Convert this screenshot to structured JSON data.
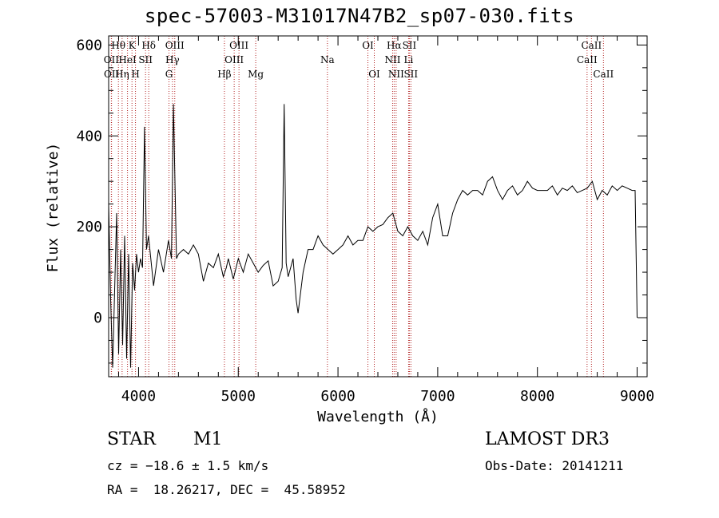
{
  "title": "spec-57003-M31017N47B2_sp07-030.fits",
  "info": {
    "class": "STAR",
    "subclass": "M1",
    "survey": "LAMOST DR3",
    "cz": "cz = −18.6 ± 1.5 km/s",
    "obs_date": "Obs-Date: 20141211",
    "coords": "RA =  18.26217, DEC =  45.58952"
  },
  "chart_data": {
    "type": "line",
    "xlabel": "Wavelength (Å)",
    "ylabel": "Flux (relative)",
    "xlim": [
      3700,
      9100
    ],
    "ylim": [
      -130,
      620
    ],
    "xticks": [
      4000,
      5000,
      6000,
      7000,
      8000,
      9000
    ],
    "yticks": [
      0,
      200,
      400,
      600
    ],
    "line_color": "#000000",
    "marker_color": "#b22222",
    "lines": [
      {
        "label": "Hθ",
        "wavelength": 3798,
        "row": 0
      },
      {
        "label": "OII",
        "wavelength": 3727,
        "row": 1
      },
      {
        "label": "OII",
        "wavelength": 3729,
        "row": 2
      },
      {
        "label": "Hη",
        "wavelength": 3835,
        "row": 2
      },
      {
        "label": "HeI",
        "wavelength": 3889,
        "row": 1
      },
      {
        "label": "K",
        "wavelength": 3934,
        "row": 0
      },
      {
        "label": "H",
        "wavelength": 3969,
        "row": 2
      },
      {
        "label": "SII",
        "wavelength": 4070,
        "row": 1
      },
      {
        "label": "Hδ",
        "wavelength": 4102,
        "row": 0
      },
      {
        "label": "G",
        "wavelength": 4305,
        "row": 2
      },
      {
        "label": "OIII",
        "wavelength": 4363,
        "row": 0
      },
      {
        "label": "Hγ",
        "wavelength": 4340,
        "row": 1
      },
      {
        "label": "Hβ",
        "wavelength": 4861,
        "row": 2
      },
      {
        "label": "OIII",
        "wavelength": 4959,
        "row": 1
      },
      {
        "label": "OIII",
        "wavelength": 5007,
        "row": 0
      },
      {
        "label": "Mg",
        "wavelength": 5175,
        "row": 2
      },
      {
        "label": "Na",
        "wavelength": 5894,
        "row": 1
      },
      {
        "label": "OI",
        "wavelength": 6300,
        "row": 0
      },
      {
        "label": "OI",
        "wavelength": 6364,
        "row": 2
      },
      {
        "label": "Hα",
        "wavelength": 6563,
        "row": 0
      },
      {
        "label": "NII",
        "wavelength": 6548,
        "row": 1
      },
      {
        "label": "NII",
        "wavelength": 6583,
        "row": 2
      },
      {
        "label": "SII",
        "wavelength": 6716,
        "row": 0
      },
      {
        "label": "Li",
        "wavelength": 6708,
        "row": 1
      },
      {
        "label": "SII",
        "wavelength": 6731,
        "row": 2
      },
      {
        "label": "CaII",
        "wavelength": 8542,
        "row": 0
      },
      {
        "label": "CaII",
        "wavelength": 8498,
        "row": 1
      },
      {
        "label": "CaII",
        "wavelength": 8662,
        "row": 2
      }
    ],
    "series": [
      {
        "x": [
          3700,
          3720,
          3740,
          3760,
          3780,
          3800,
          3820,
          3840,
          3860,
          3880,
          3900,
          3920,
          3940,
          3960,
          3980,
          4000,
          4020,
          4040,
          4060,
          4080,
          4100,
          4150,
          4200,
          4250,
          4300,
          4330,
          4350,
          4380,
          4400,
          4450,
          4500,
          4550,
          4600,
          4650,
          4700,
          4750,
          4800,
          4850,
          4880,
          4900,
          4950,
          5000,
          5050,
          5100,
          5150,
          5200,
          5250,
          5300,
          5350,
          5400,
          5440,
          5460,
          5480,
          5500,
          5550,
          5580,
          5600,
          5650,
          5700,
          5750,
          5800,
          5850,
          5900,
          5950,
          6000,
          6050,
          6100,
          6150,
          6200,
          6250,
          6300,
          6350,
          6400,
          6450,
          6500,
          6550,
          6600,
          6650,
          6700,
          6750,
          6800,
          6850,
          6900,
          6950,
          7000,
          7050,
          7100,
          7150,
          7200,
          7250,
          7300,
          7350,
          7400,
          7450,
          7500,
          7550,
          7600,
          7650,
          7700,
          7750,
          7800,
          7850,
          7900,
          7950,
          8000,
          8050,
          8100,
          8150,
          8200,
          8250,
          8300,
          8350,
          8400,
          8450,
          8500,
          8550,
          8600,
          8650,
          8700,
          8750,
          8800,
          8850,
          8900,
          8950,
          8980,
          9000
        ],
        "y": [
          250,
          40,
          -110,
          60,
          230,
          -80,
          150,
          -60,
          180,
          -90,
          140,
          -110,
          120,
          60,
          140,
          100,
          130,
          110,
          420,
          150,
          180,
          70,
          150,
          100,
          170,
          130,
          470,
          130,
          140,
          150,
          140,
          160,
          140,
          80,
          120,
          110,
          140,
          90,
          110,
          130,
          85,
          130,
          100,
          140,
          120,
          100,
          115,
          125,
          70,
          80,
          110,
          470,
          120,
          90,
          130,
          40,
          10,
          100,
          150,
          150,
          180,
          160,
          150,
          140,
          150,
          160,
          180,
          160,
          170,
          170,
          200,
          190,
          200,
          205,
          220,
          230,
          190,
          180,
          200,
          180,
          170,
          190,
          160,
          220,
          250,
          180,
          180,
          230,
          260,
          280,
          270,
          280,
          280,
          270,
          300,
          310,
          280,
          260,
          280,
          290,
          270,
          280,
          300,
          285,
          280,
          280,
          280,
          290,
          270,
          285,
          280,
          290,
          275,
          280,
          285,
          300,
          260,
          280,
          270,
          290,
          280,
          290,
          285,
          280,
          280,
          0
        ]
      }
    ]
  }
}
